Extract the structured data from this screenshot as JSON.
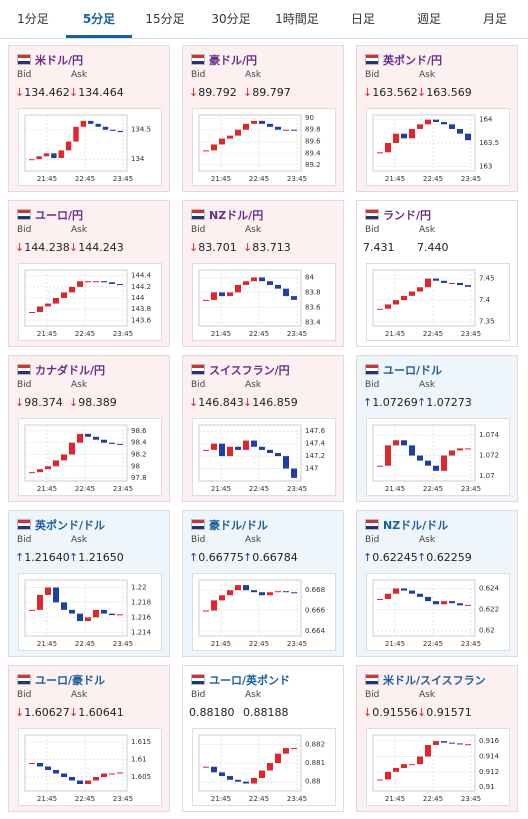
{
  "tabs": {
    "items": [
      "1分足",
      "5分足",
      "15分足",
      "30分足",
      "1時間足",
      "日足",
      "週足",
      "月足"
    ],
    "active": 1
  },
  "labels": {
    "bid": "Bid",
    "ask": "Ask"
  },
  "x_ticks": [
    "21:45",
    "22:45",
    "23:45"
  ],
  "colors": {
    "up": "#e0262b",
    "down": "#1f3fa8",
    "up_bg": "#eef5fb",
    "down_bg": "#fdf0f0"
  },
  "cards": [
    {
      "name": "米ドル/円",
      "color": "#6b2d8b",
      "arrow": "↓",
      "bid": "134.462",
      "ask": "134.464",
      "ylim": [
        133.8,
        134.75
      ],
      "yticks": [
        134,
        134.5
      ],
      "prices": [
        134.0,
        134.05,
        134.1,
        134.02,
        134.15,
        134.3,
        134.55,
        134.65,
        134.6,
        134.55,
        134.5,
        134.48,
        134.46
      ]
    },
    {
      "name": "豪ドル/円",
      "color": "#6b2d8b",
      "arrow": "↓",
      "bid": "89.792",
      "ask": "89.797",
      "ylim": [
        89.1,
        90.05
      ],
      "yticks": [
        89.2,
        89.4,
        89.6,
        89.8,
        90
      ],
      "prices": [
        89.45,
        89.55,
        89.65,
        89.7,
        89.8,
        89.9,
        89.95,
        89.9,
        89.85,
        89.8,
        89.8,
        89.79
      ]
    },
    {
      "name": "英ポンド/円",
      "color": "#6b2d8b",
      "arrow": "↓",
      "bid": "163.562",
      "ask": "163.569",
      "ylim": [
        162.9,
        164.1
      ],
      "yticks": [
        163,
        163.5,
        164
      ],
      "prices": [
        163.3,
        163.5,
        163.7,
        163.6,
        163.8,
        163.9,
        164,
        163.95,
        163.9,
        163.8,
        163.7,
        163.56
      ]
    },
    {
      "name": "ユーロ/円",
      "color": "#6b2d8b",
      "arrow": "↓",
      "bid": "144.238",
      "ask": "144.243",
      "ylim": [
        143.5,
        144.5
      ],
      "yticks": [
        143.6,
        143.8,
        144,
        144.2,
        144.4
      ],
      "prices": [
        143.75,
        143.85,
        143.9,
        144,
        144.1,
        144.2,
        144.3,
        144.3,
        144.3,
        144.28,
        144.25,
        144.24
      ]
    },
    {
      "name": "NZドル/円",
      "color": "#6b2d8b",
      "arrow": "↓",
      "bid": "83.701",
      "ask": "83.713",
      "ylim": [
        83.35,
        84.1
      ],
      "yticks": [
        83.4,
        83.6,
        83.8,
        84
      ],
      "prices": [
        83.7,
        83.8,
        83.75,
        83.8,
        83.9,
        83.95,
        84.0,
        83.95,
        83.9,
        83.85,
        83.75,
        83.7
      ]
    },
    {
      "name": "ランド/円",
      "color": "#6b2d8b",
      "arrow": null,
      "bid": "7.431",
      "ask": "7.440",
      "ylim": [
        7.34,
        7.47
      ],
      "yticks": [
        7.35,
        7.4,
        7.45
      ],
      "prices": [
        7.38,
        7.39,
        7.4,
        7.41,
        7.42,
        7.43,
        7.45,
        7.445,
        7.44,
        7.44,
        7.435,
        7.431
      ]
    },
    {
      "name": "カナダドル/円",
      "color": "#6b2d8b",
      "arrow": "↓",
      "bid": "98.374",
      "ask": "98.389",
      "ylim": [
        97.75,
        98.7
      ],
      "yticks": [
        97.8,
        98,
        98.2,
        98.4,
        98.6
      ],
      "prices": [
        97.9,
        97.95,
        98.0,
        98.1,
        98.2,
        98.4,
        98.55,
        98.5,
        98.45,
        98.4,
        98.38,
        98.37
      ]
    },
    {
      "name": "スイスフラン/円",
      "color": "#6b2d8b",
      "arrow": "↓",
      "bid": "146.843",
      "ask": "146.859",
      "ylim": [
        146.8,
        147.7
      ],
      "yticks": [
        147,
        147.2,
        147.4,
        147.6
      ],
      "prices": [
        147.3,
        147.4,
        147.2,
        147.35,
        147.3,
        147.45,
        147.35,
        147.3,
        147.25,
        147.2,
        147.0,
        146.85
      ]
    },
    {
      "name": "ユーロ/ドル",
      "color": "#1a5fa0",
      "arrow": "↑",
      "bid": "1.07269",
      "ask": "1.07273",
      "ylim": [
        1.0695,
        1.075
      ],
      "yticks": [
        1.07,
        1.072,
        1.074
      ],
      "prices": [
        1.071,
        1.073,
        1.0735,
        1.073,
        1.072,
        1.0715,
        1.071,
        1.0705,
        1.072,
        1.0725,
        1.0727,
        1.0727
      ]
    },
    {
      "name": "英ポンド/ドル",
      "color": "#1a5fa0",
      "arrow": "↑",
      "bid": "1.21640",
      "ask": "1.21650",
      "ylim": [
        1.2135,
        1.221
      ],
      "yticks": [
        1.214,
        1.216,
        1.218,
        1.22
      ],
      "prices": [
        1.217,
        1.219,
        1.22,
        1.218,
        1.217,
        1.2165,
        1.2155,
        1.216,
        1.217,
        1.2165,
        1.2163,
        1.2164
      ]
    },
    {
      "name": "豪ドル/ドル",
      "color": "#1a5fa0",
      "arrow": "↑",
      "bid": "0.66775",
      "ask": "0.66784",
      "ylim": [
        0.6635,
        0.669
      ],
      "yticks": [
        0.664,
        0.666,
        0.668
      ],
      "prices": [
        0.666,
        0.667,
        0.6675,
        0.668,
        0.6685,
        0.668,
        0.6678,
        0.6675,
        0.6678,
        0.6679,
        0.6678,
        0.66775
      ]
    },
    {
      "name": "NZドル/ドル",
      "color": "#1a5fa0",
      "arrow": "↑",
      "bid": "0.62245",
      "ask": "0.62259",
      "ylim": [
        0.6195,
        0.6248
      ],
      "yticks": [
        0.62,
        0.622,
        0.624
      ],
      "prices": [
        0.623,
        0.6235,
        0.624,
        0.6238,
        0.6235,
        0.6232,
        0.6228,
        0.6225,
        0.6228,
        0.6226,
        0.6224,
        0.62245
      ]
    },
    {
      "name": "ユーロ/豪ドル",
      "color": "#1a5fa0",
      "arrow": "↓",
      "bid": "1.60627",
      "ask": "1.60641",
      "ylim": [
        1.601,
        1.617
      ],
      "yticks": [
        1.605,
        1.61,
        1.615
      ],
      "prices": [
        1.609,
        1.608,
        1.607,
        1.606,
        1.605,
        1.604,
        1.603,
        1.604,
        1.605,
        1.606,
        1.606,
        1.6063
      ]
    },
    {
      "name": "ユーロ/英ポンド",
      "color": "#1a5fa0",
      "arrow": null,
      "bid": "0.88180",
      "ask": "0.88188",
      "ylim": [
        0.8795,
        0.8825
      ],
      "yticks": [
        0.88,
        0.881,
        0.882
      ],
      "prices": [
        0.8808,
        0.8805,
        0.8803,
        0.8801,
        0.88,
        0.8799,
        0.8802,
        0.8806,
        0.881,
        0.8815,
        0.8818,
        0.8818
      ]
    },
    {
      "name": "米ドル/スイスフラン",
      "color": "#1a5fa0",
      "arrow": "↓",
      "bid": "0.91556",
      "ask": "0.91571",
      "ylim": [
        0.9095,
        0.9168
      ],
      "yticks": [
        0.91,
        0.912,
        0.914,
        0.916
      ],
      "prices": [
        0.911,
        0.912,
        0.9125,
        0.913,
        0.913,
        0.914,
        0.9155,
        0.916,
        0.9158,
        0.9157,
        0.9156,
        0.9156
      ]
    }
  ]
}
